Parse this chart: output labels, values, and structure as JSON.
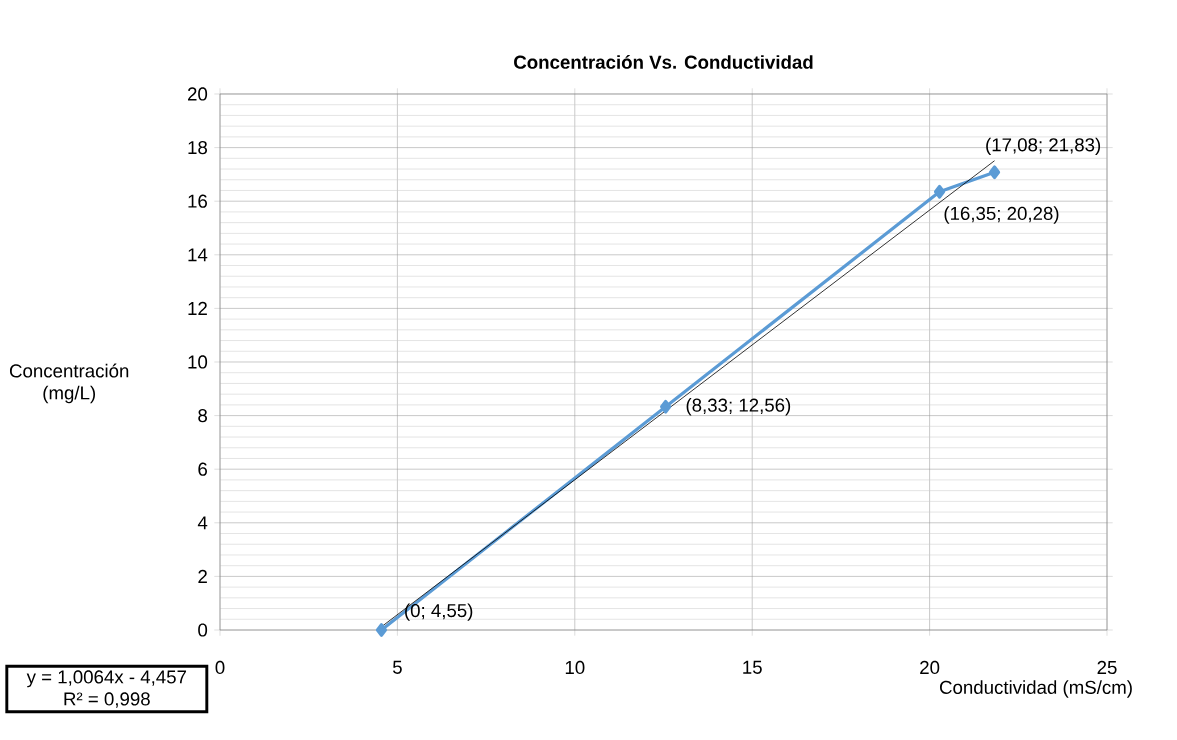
{
  "chart_data": {
    "type": "line",
    "title": "Concentración Vs. Conductividad",
    "xlabel": "Conductividad (mS/cm)",
    "ylabel": "Concentración (mg/L)",
    "series": [
      {
        "color": "#5b9bd5",
        "x": [
          4.55,
          12.56,
          20.28,
          21.83
        ],
        "values": [
          0,
          8.33,
          16.35,
          17.08
        ]
      },
      {
        "type": "line",
        "color": "#000000",
        "marker": "none",
        "x": [
          4.55,
          21.83
        ],
        "values": [
          0.12,
          17.51
        ]
      }
    ],
    "xlim": [
      0,
      25
    ],
    "xticks": [
      0,
      5,
      10,
      15,
      20,
      25
    ],
    "ylim": [
      0,
      20
    ],
    "yticks": [
      0,
      2,
      4,
      6,
      8,
      10,
      12,
      14,
      16,
      18,
      20
    ],
    "grid": true,
    "marker": "diamond",
    "line_style": "solid",
    "annotations": [
      {
        "text": "(0; 4,55)",
        "x": 4.55,
        "y": 0
      },
      {
        "text": "(8,33; 12,56)",
        "x": 12.56,
        "y": 8.33
      },
      {
        "text": "(16,35; 20,28)",
        "x": 20.28,
        "y": 16.35
      },
      {
        "text": "(17,08; 21,83)",
        "x": 21.83,
        "y": 17.08
      },
      "y = 1,0064x - 4,457",
      "R² = 0,998"
    ]
  }
}
